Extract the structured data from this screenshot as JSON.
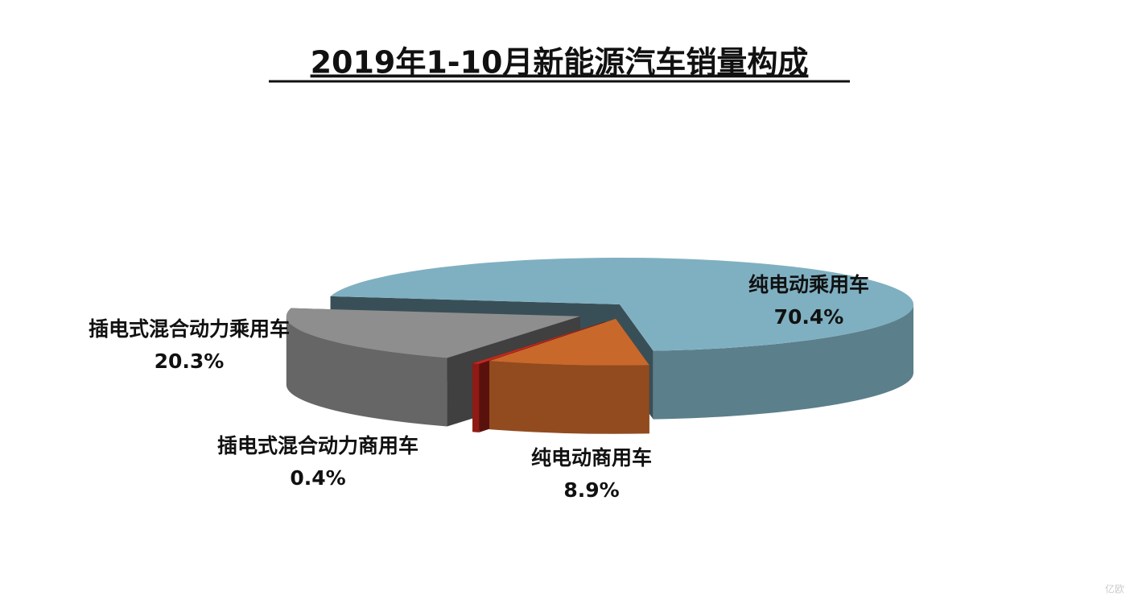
{
  "chart_data": {
    "type": "pie3d",
    "title": "2019年1-10月新能源汽车销量构成",
    "categories": [
      "纯电动乘用车",
      "纯电动商用车",
      "插电式混合动力商用车",
      "插电式混合动力乘用车"
    ],
    "values": [
      70.4,
      8.9,
      0.4,
      20.3
    ],
    "value_labels": [
      "70.4%",
      "8.9%",
      "0.4%",
      "20.3%"
    ],
    "colors": [
      "#7fb0c1",
      "#c9682b",
      "#c8261c",
      "#8e8e8e"
    ],
    "watermark": "亿欧"
  }
}
